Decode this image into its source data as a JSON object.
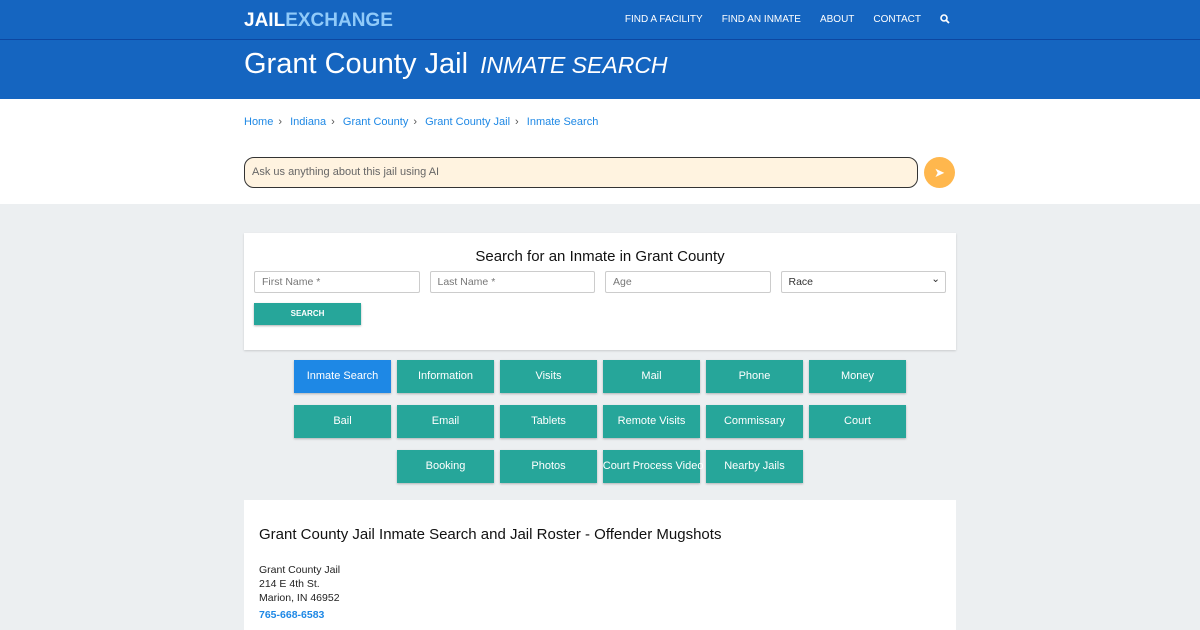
{
  "nav": {
    "logo_a": "JAIL",
    "logo_b": "EXCHANGE",
    "items": [
      "FIND A FACILITY",
      "FIND AN INMATE",
      "ABOUT",
      "CONTACT"
    ],
    "search_icon": "search-icon"
  },
  "hero": {
    "title": "Grant County Jail",
    "subtitle": "INMATE SEARCH"
  },
  "breadcrumb": [
    "Home",
    "Indiana",
    "Grant County",
    "Grant County Jail",
    "Inmate Search"
  ],
  "ai": {
    "placeholder": "Ask us anything about this jail using AI",
    "send_icon": "paper-plane-icon"
  },
  "search": {
    "title": "Search for an Inmate in Grant County",
    "first": "First Name *",
    "last": "Last Name *",
    "age": "Age",
    "race": "Race",
    "button": "SEARCH"
  },
  "buttons": [
    "Inmate Search",
    "Information",
    "Visits",
    "Mail",
    "Phone",
    "Money",
    "Bail",
    "Email",
    "Tablets",
    "Remote Visits",
    "Commissary",
    "Court",
    "Booking",
    "Photos",
    "Court Process Video",
    "Nearby Jails"
  ],
  "info": {
    "title": "Grant County Jail Inmate Search and Jail Roster - Offender Mugshots",
    "name": "Grant County Jail",
    "street": "214 E 4th St.",
    "city": "Marion, IN 46952",
    "phone": "765-668-6583"
  },
  "colors": {
    "primary": "#1565c0",
    "teal": "#26a69a",
    "active": "#1e88e5",
    "send": "#ffb74d"
  }
}
